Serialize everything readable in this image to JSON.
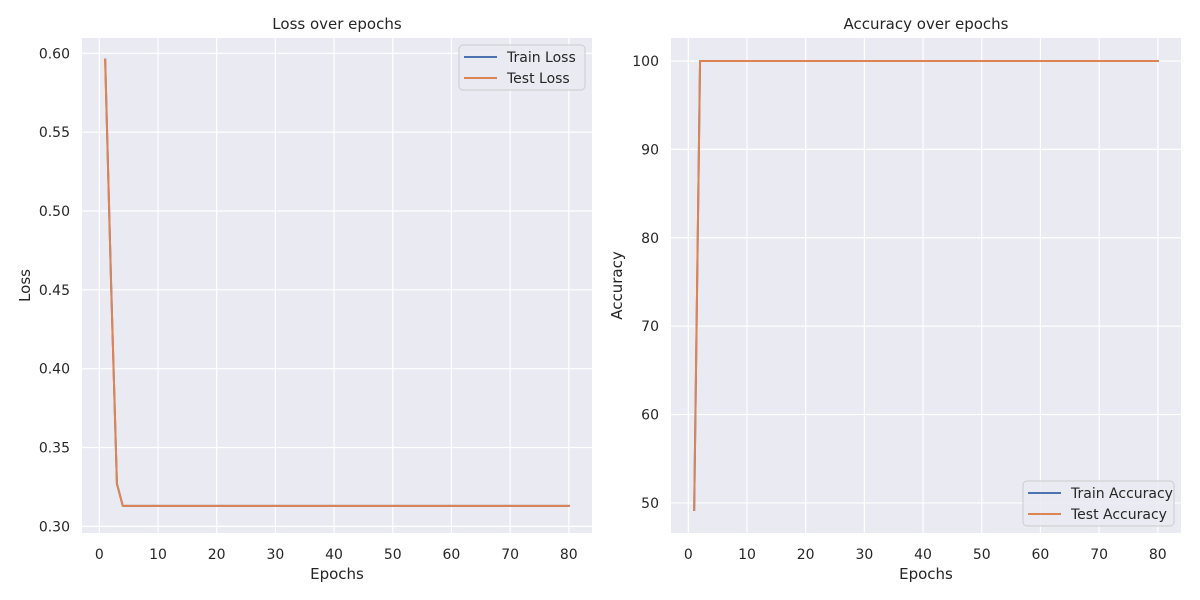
{
  "chart_data": [
    {
      "type": "line",
      "title": "Loss over epochs",
      "xlabel": "Epochs",
      "ylabel": "Loss",
      "xlim": [
        -2.95,
        83.95
      ],
      "ylim": [
        0.2958,
        0.6097
      ],
      "xticks": [
        0,
        10,
        20,
        30,
        40,
        50,
        60,
        70,
        80
      ],
      "yticks": [
        0.3,
        0.35,
        0.4,
        0.45,
        0.5,
        0.55,
        0.6
      ],
      "ytick_labels": [
        "0.30",
        "0.35",
        "0.40",
        "0.45",
        "0.50",
        "0.55",
        "0.60"
      ],
      "grid": true,
      "legend_position": "top-right",
      "colors": {
        "background": "#EAEAF2",
        "grid": "#FFFFFF",
        "train": "#4C72B0",
        "test": "#DD8452"
      },
      "series": [
        {
          "name": "Train Loss",
          "key": "train",
          "x": [
            1,
            2,
            3,
            4,
            80
          ],
          "y": [
            0.596,
            0.455,
            0.327,
            0.313,
            0.313
          ]
        },
        {
          "name": "Test Loss",
          "key": "test",
          "x": [
            1,
            2,
            3,
            4,
            80
          ],
          "y": [
            0.596,
            0.455,
            0.327,
            0.313,
            0.313
          ]
        }
      ]
    },
    {
      "type": "line",
      "title": "Accuracy over epochs",
      "xlabel": "Epochs",
      "ylabel": "Accuracy",
      "xlim": [
        -2.95,
        83.95
      ],
      "ylim": [
        46.6,
        102.6
      ],
      "xticks": [
        0,
        10,
        20,
        30,
        40,
        50,
        60,
        70,
        80
      ],
      "yticks": [
        50,
        60,
        70,
        80,
        90,
        100
      ],
      "ytick_labels": [
        "50",
        "60",
        "70",
        "80",
        "90",
        "100"
      ],
      "grid": true,
      "legend_position": "bottom-right",
      "colors": {
        "background": "#EAEAF2",
        "grid": "#FFFFFF",
        "train": "#4C72B0",
        "test": "#DD8452"
      },
      "series": [
        {
          "name": "Train Accuracy",
          "key": "train",
          "x": [
            1,
            2,
            80
          ],
          "y": [
            49.2,
            100,
            100
          ]
        },
        {
          "name": "Test Accuracy",
          "key": "test",
          "x": [
            1,
            2,
            80
          ],
          "y": [
            49.2,
            100,
            100
          ]
        }
      ]
    }
  ]
}
